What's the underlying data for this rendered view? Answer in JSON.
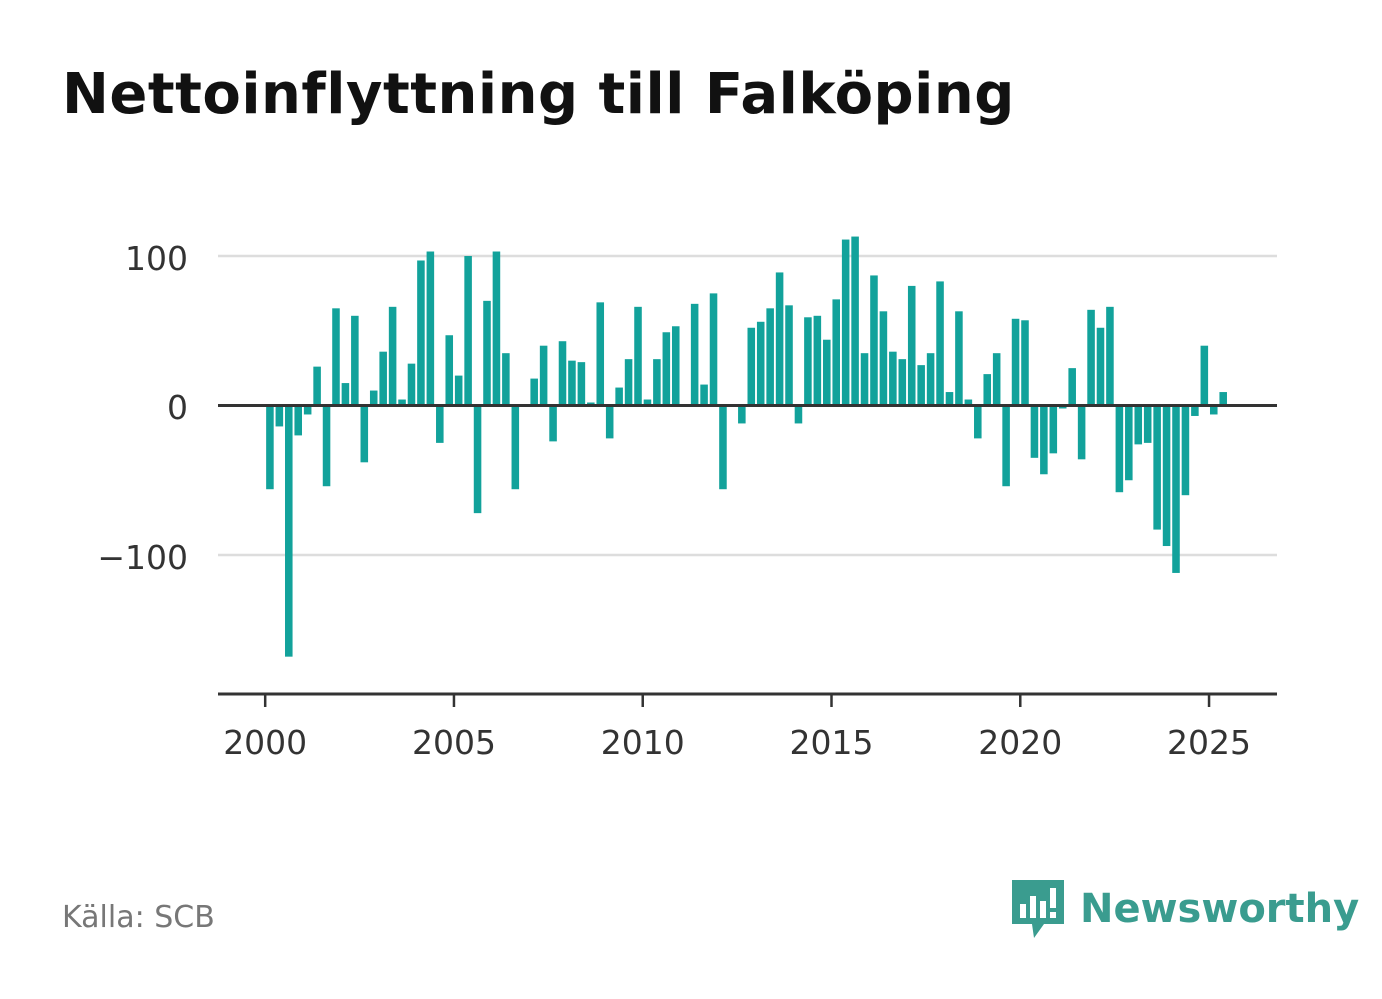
{
  "chart_data": {
    "type": "bar",
    "title": "Nettoinflyttning till Falköping",
    "xlabel": "",
    "ylabel": "",
    "x_ticks": [
      "2000",
      "2005",
      "2010",
      "2015",
      "2020",
      "2025"
    ],
    "y_ticks": [
      "100",
      "0",
      "−100"
    ],
    "ylim": [
      -193,
      118
    ],
    "xlim": [
      1998.75,
      2026.8
    ],
    "grid": true,
    "legend": "none",
    "bar_color": "#12a29b",
    "series": [
      {
        "values": [
          [
            2000.125,
            -56
          ],
          [
            2000.375,
            -14
          ],
          [
            2000.625,
            -168
          ],
          [
            2000.875,
            -20
          ],
          [
            2001.125,
            -6
          ],
          [
            2001.375,
            26
          ],
          [
            2001.625,
            -54
          ],
          [
            2001.875,
            65
          ],
          [
            2002.125,
            15
          ],
          [
            2002.375,
            60
          ],
          [
            2002.625,
            -38
          ],
          [
            2002.875,
            10
          ],
          [
            2003.125,
            36
          ],
          [
            2003.375,
            66
          ],
          [
            2003.625,
            4
          ],
          [
            2003.875,
            28
          ],
          [
            2004.125,
            97
          ],
          [
            2004.375,
            103
          ],
          [
            2004.625,
            -25
          ],
          [
            2004.875,
            47
          ],
          [
            2005.125,
            20
          ],
          [
            2005.375,
            100
          ],
          [
            2005.625,
            -72
          ],
          [
            2005.875,
            70
          ],
          [
            2006.125,
            103
          ],
          [
            2006.375,
            35
          ],
          [
            2006.625,
            -56
          ],
          [
            2006.875,
            0
          ],
          [
            2007.125,
            18
          ],
          [
            2007.375,
            40
          ],
          [
            2007.625,
            -24
          ],
          [
            2007.875,
            43
          ],
          [
            2008.125,
            30
          ],
          [
            2008.375,
            29
          ],
          [
            2008.625,
            2
          ],
          [
            2008.875,
            69
          ],
          [
            2009.125,
            -22
          ],
          [
            2009.375,
            12
          ],
          [
            2009.625,
            31
          ],
          [
            2009.875,
            66
          ],
          [
            2010.125,
            4
          ],
          [
            2010.375,
            31
          ],
          [
            2010.625,
            49
          ],
          [
            2010.875,
            53
          ],
          [
            2011.125,
            0
          ],
          [
            2011.375,
            68
          ],
          [
            2011.625,
            14
          ],
          [
            2011.875,
            75
          ],
          [
            2012.125,
            -56
          ],
          [
            2012.375,
            0
          ],
          [
            2012.625,
            -12
          ],
          [
            2012.875,
            52
          ],
          [
            2013.125,
            56
          ],
          [
            2013.375,
            65
          ],
          [
            2013.625,
            89
          ],
          [
            2013.875,
            67
          ],
          [
            2014.125,
            -12
          ],
          [
            2014.375,
            59
          ],
          [
            2014.625,
            60
          ],
          [
            2014.875,
            44
          ],
          [
            2015.125,
            71
          ],
          [
            2015.375,
            111
          ],
          [
            2015.625,
            113
          ],
          [
            2015.875,
            35
          ],
          [
            2016.125,
            87
          ],
          [
            2016.375,
            63
          ],
          [
            2016.625,
            36
          ],
          [
            2016.875,
            31
          ],
          [
            2017.125,
            80
          ],
          [
            2017.375,
            27
          ],
          [
            2017.625,
            35
          ],
          [
            2017.875,
            83
          ],
          [
            2018.125,
            9
          ],
          [
            2018.375,
            63
          ],
          [
            2018.625,
            4
          ],
          [
            2018.875,
            -22
          ],
          [
            2019.125,
            21
          ],
          [
            2019.375,
            35
          ],
          [
            2019.625,
            -54
          ],
          [
            2019.875,
            58
          ],
          [
            2020.125,
            57
          ],
          [
            2020.375,
            -35
          ],
          [
            2020.625,
            -46
          ],
          [
            2020.875,
            -32
          ],
          [
            2021.125,
            -2
          ],
          [
            2021.375,
            25
          ],
          [
            2021.625,
            -36
          ],
          [
            2021.875,
            64
          ],
          [
            2022.125,
            52
          ],
          [
            2022.375,
            66
          ],
          [
            2022.625,
            -58
          ],
          [
            2022.875,
            -50
          ],
          [
            2023.125,
            -26
          ],
          [
            2023.375,
            -25
          ],
          [
            2023.625,
            -83
          ],
          [
            2023.875,
            -94
          ],
          [
            2024.125,
            -112
          ],
          [
            2024.375,
            -60
          ],
          [
            2024.625,
            -7
          ],
          [
            2024.875,
            40
          ],
          [
            2025.125,
            -6
          ],
          [
            2025.375,
            9
          ]
        ]
      }
    ]
  },
  "footer": {
    "source": "Källa: SCB",
    "brand": "Newsworthy",
    "brand_color": "#3a9c8f",
    "logo_icon": "newsworthy-chart-bubble-icon"
  }
}
